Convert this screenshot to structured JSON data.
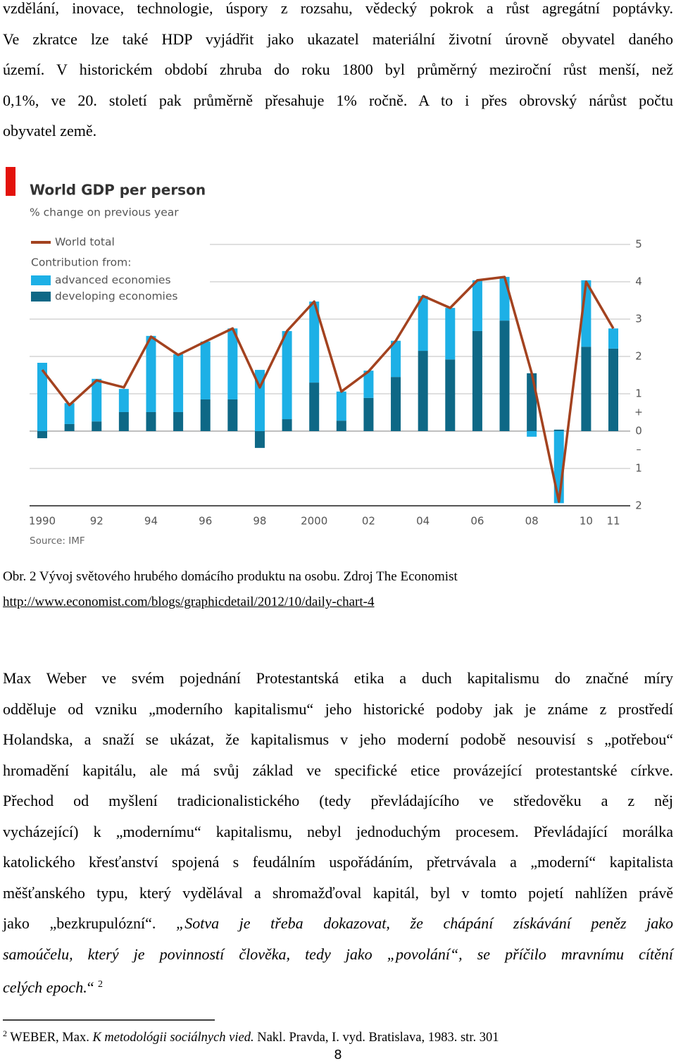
{
  "paragraph1": [
    [
      {
        "text": "vzdělání, inovace, technologie, úspory z rozsahu, vědecký pokrok a růst agregátní poptávky."
      }
    ],
    [
      {
        "text": "Ve zkratce lze také HDP vyjádřit jako ukazatel materiální životní úrovně obyvatel daného"
      }
    ],
    [
      {
        "text": "území. V historickém období zhruba do roku 1800 byl průměrný meziroční růst menší, než"
      }
    ],
    [
      {
        "text": "0,1%, ve 20. století pak průměrně přesahuje 1% ročně. A to i přes obrovský nárůst počtu"
      }
    ],
    [
      {
        "text": "obyvatel země."
      }
    ]
  ],
  "chart_data": {
    "type": "bar",
    "stacked": true,
    "title": "World GDP per person",
    "subtitle": "% change on previous year",
    "legend_heading": "Contribution from:",
    "source": "Source: IMF",
    "categories": [
      "1990",
      null,
      "92",
      null,
      "94",
      null,
      "96",
      null,
      "98",
      null,
      "2000",
      null,
      "02",
      null,
      "04",
      null,
      "06",
      null,
      "08",
      null,
      "10",
      "11"
    ],
    "series": [
      {
        "name": "World total",
        "type": "line",
        "color": "#a3421f",
        "values": [
          1.64,
          0.7,
          1.36,
          1.17,
          2.53,
          2.04,
          2.4,
          2.75,
          1.17,
          2.68,
          3.47,
          1.06,
          1.6,
          2.42,
          3.62,
          3.3,
          4.04,
          4.13,
          1.55,
          -1.89,
          4.0,
          2.75
        ]
      },
      {
        "name": "advanced economies",
        "type": "bar",
        "color": "#1db0e6",
        "values": [
          1.83,
          0.56,
          1.14,
          0.62,
          2.04,
          1.55,
          1.55,
          1.9,
          1.64,
          2.36,
          2.17,
          0.78,
          0.73,
          0.97,
          1.47,
          1.38,
          1.36,
          1.17,
          -0.15,
          -1.93,
          1.78,
          0.54
        ]
      },
      {
        "name": "developing economies",
        "type": "bar",
        "color": "#0e6886",
        "values": [
          -0.19,
          0.19,
          0.26,
          0.51,
          0.51,
          0.51,
          0.85,
          0.85,
          -0.45,
          0.32,
          1.3,
          0.28,
          0.89,
          1.45,
          2.15,
          1.92,
          2.68,
          2.96,
          1.55,
          0.04,
          2.26,
          2.21
        ]
      }
    ],
    "ylim": [
      -2,
      5
    ],
    "yticks": [
      5,
      4,
      3,
      2,
      1,
      0,
      {
        "value": -1,
        "label": "1"
      },
      {
        "value": -2,
        "label": "2"
      }
    ],
    "sign_labels": [
      {
        "value": 0.5,
        "label": "+"
      },
      {
        "value": -0.5,
        "label": "–"
      }
    ],
    "grid": true,
    "title_marker_color": "#e3120b"
  },
  "caption": "Obr. 2 Vývoj světového hrubého domácího produktu na osobu. Zdroj The Economist",
  "link": "http://www.economist.com/blogs/graphicdetail/2012/10/daily-chart-4",
  "paragraph2": [
    [
      {
        "text": "Max Weber ve svém pojednání Protestantská etika a duch kapitalismu do značné míry"
      }
    ],
    [
      {
        "text": "odděluje od vzniku „moderního kapitalismu“ jeho historické podoby jak je známe z prostředí"
      }
    ],
    [
      {
        "text": "Holandska, a snaží se ukázat, že kapitalismus v jeho moderní podobě nesouvisí s „potřebou“"
      }
    ],
    [
      {
        "text": "hromadění kapitálu, ale má svůj základ ve specifické etice provázející protestantské církve."
      }
    ],
    [
      {
        "text": "Přechod od myšlení tradicionalistického (tedy převládajícího ve středověku a z něj"
      }
    ],
    [
      {
        "text": "vycházející) k „modernímu“ kapitalismu, nebyl jednoduchým procesem. Převládající morálka"
      }
    ],
    [
      {
        "text": "katolického křesťanství spojená s feudálním uspořádáním, přetrvávala a „moderní“ kapitalista"
      }
    ],
    [
      {
        "text": "měšťanského typu, který vydělával a shromažďoval kapitál, byl v tomto pojetí nahlížen právě"
      }
    ],
    [
      {
        "text": "jako „bezkrupulózní“. "
      },
      {
        "text": "„Sotva je třeba dokazovat, že chápání získávání peněz jako",
        "style": "italic"
      }
    ],
    [
      {
        "text": "samoúčelu, který je povinností člověka, tedy jako „povolání“, se příčilo mravnímu cítění",
        "style": "italic"
      }
    ],
    [
      {
        "text": "celých epoch.",
        "style": "italic"
      },
      {
        "text": "“ "
      },
      {
        "text": "2",
        "style": "sup"
      }
    ]
  ],
  "footnote": [
    {
      "text": "2",
      "style": "sup"
    },
    {
      "text": " WEBER, Max. "
    },
    {
      "text": "K metodológii sociálnych vied.",
      "style": "italic"
    },
    {
      "text": " Nakl. Pravda, I. vyd. Bratislava, 1983. str. 301"
    }
  ],
  "page_number": "8"
}
